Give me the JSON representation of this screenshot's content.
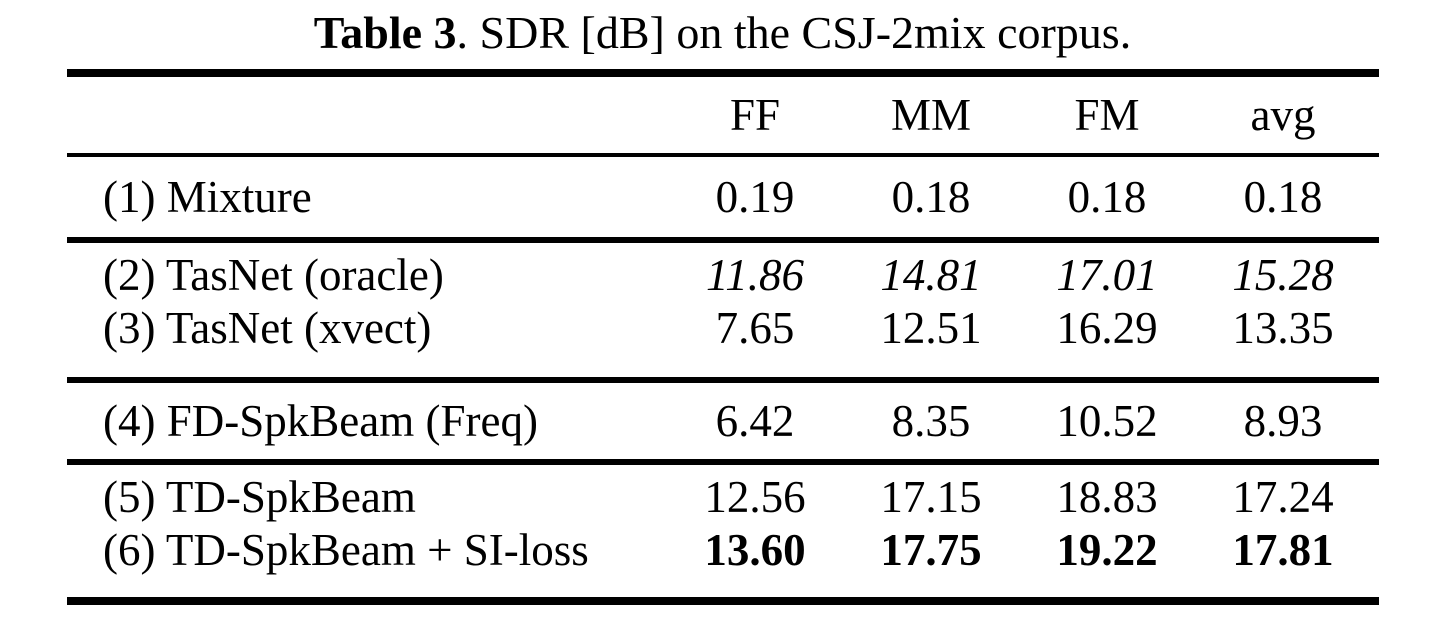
{
  "caption": {
    "label": "Table 3",
    "text": ". SDR [dB] on the CSJ-2mix corpus."
  },
  "table": {
    "columns": [
      "FF",
      "MM",
      "FM",
      "avg"
    ],
    "sections": [
      {
        "rows": [
          {
            "label": "(1) Mixture",
            "values": [
              "0.19",
              "0.18",
              "0.18",
              "0.18"
            ],
            "emphasis": "none"
          }
        ]
      },
      {
        "rows": [
          {
            "label": "(2) TasNet (oracle)",
            "values": [
              "11.86",
              "14.81",
              "17.01",
              "15.28"
            ],
            "emphasis": "italic"
          },
          {
            "label": "(3) TasNet (xvect)",
            "values": [
              "7.65",
              "12.51",
              "16.29",
              "13.35"
            ],
            "emphasis": "none"
          }
        ]
      },
      {
        "rows": [
          {
            "label": "(4) FD-SpkBeam (Freq)",
            "values": [
              "6.42",
              "8.35",
              "10.52",
              "8.93"
            ],
            "emphasis": "none"
          }
        ]
      },
      {
        "rows": [
          {
            "label": "(5) TD-SpkBeam",
            "values": [
              "12.56",
              "17.15",
              "18.83",
              "17.24"
            ],
            "emphasis": "none"
          },
          {
            "label": "(6) TD-SpkBeam + SI-loss",
            "values": [
              "13.60",
              "17.75",
              "19.22",
              "17.81"
            ],
            "emphasis": "bold"
          }
        ]
      }
    ]
  }
}
